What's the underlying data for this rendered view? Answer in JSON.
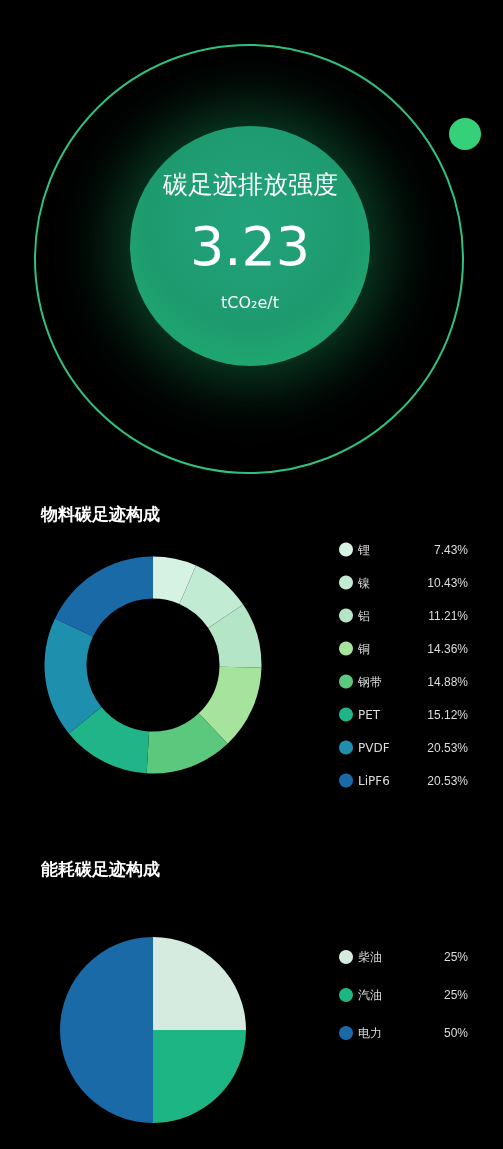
{
  "chart_data": [
    {
      "type": "other",
      "title": "碳足迹排放强度",
      "annotations": [
        "3.23",
        "tCO₂e/t"
      ]
    },
    {
      "type": "donut",
      "title": "物料碳足迹构成",
      "legend": "right",
      "categories": [
        "锂",
        "镍",
        "铝",
        "铜",
        "钢带",
        "PET",
        "PVDF",
        "LiPF6"
      ],
      "values": [
        7.43,
        10.43,
        11.21,
        14.36,
        14.88,
        15.12,
        20.53,
        20.53
      ],
      "value_labels": [
        "7.43%",
        "10.43%",
        "11.21%",
        "14.36%",
        "14.88%",
        "15.12%",
        "20.53%",
        "20.53%"
      ],
      "colors": [
        "#d6f2e3",
        "#c2ebd4",
        "#b4e5c6",
        "#a6e39c",
        "#5cc87e",
        "#21b489",
        "#1f8fae",
        "#1a6aa8"
      ]
    },
    {
      "type": "pie",
      "title": "能耗碳足迹构成",
      "legend": "right",
      "categories": [
        "柴油",
        "汽油",
        "电力"
      ],
      "values": [
        25,
        25,
        50
      ],
      "value_labels": [
        "25%",
        "25%",
        "50%"
      ],
      "colors": [
        "#d6ebdf",
        "#1db584",
        "#1a6aa8"
      ]
    }
  ]
}
